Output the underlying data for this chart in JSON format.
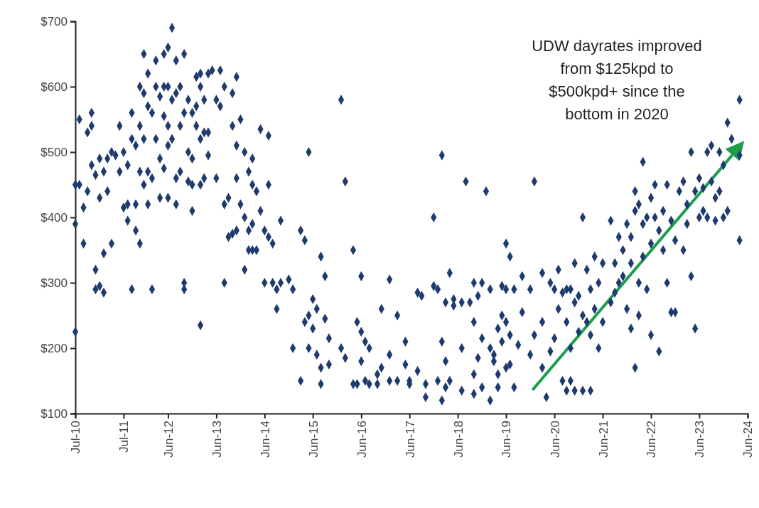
{
  "chart_data": {
    "type": "scatter",
    "marker": "diamond",
    "grid": false,
    "annotations": [
      "UDW dayrates improved\nfrom $125kpd to\n$500kpd+ since the\nbottom in 2020"
    ],
    "xlim": [
      "2010-07",
      "2024-06"
    ],
    "xticks": [
      {
        "value": "2010-07",
        "label": "Jul-10"
      },
      {
        "value": "2011-07",
        "label": "Jul-11"
      },
      {
        "value": "2012-06",
        "label": "Jun-12"
      },
      {
        "value": "2013-06",
        "label": "Jun-13"
      },
      {
        "value": "2014-06",
        "label": "Jun-14"
      },
      {
        "value": "2015-06",
        "label": "Jun-15"
      },
      {
        "value": "2016-06",
        "label": "Jun-16"
      },
      {
        "value": "2017-06",
        "label": "Jun-17"
      },
      {
        "value": "2018-06",
        "label": "Jun-18"
      },
      {
        "value": "2019-06",
        "label": "Jun-19"
      },
      {
        "value": "2020-06",
        "label": "Jun-20"
      },
      {
        "value": "2021-06",
        "label": "Jun-21"
      },
      {
        "value": "2022-06",
        "label": "Jun-22"
      },
      {
        "value": "2023-06",
        "label": "Jun-23"
      },
      {
        "value": "2024-06",
        "label": "Jun-24"
      }
    ],
    "ylim": [
      100,
      700
    ],
    "yticks": [
      {
        "value": 100,
        "label": "$100"
      },
      {
        "value": 200,
        "label": "$200"
      },
      {
        "value": 300,
        "label": "$300"
      },
      {
        "value": 400,
        "label": "$400"
      },
      {
        "value": 500,
        "label": "$500"
      },
      {
        "value": 600,
        "label": "$600"
      },
      {
        "value": 700,
        "label": "$700"
      }
    ],
    "series": [
      {
        "color": "#1f3a6e",
        "x": [
          "2010-07",
          "2010-07",
          "2010-07",
          "2010-08",
          "2010-08",
          "2010-09",
          "2010-09",
          "2010-10",
          "2010-10",
          "2010-11",
          "2010-11",
          "2010-11",
          "2010-12",
          "2010-12",
          "2010-12",
          "2011-01",
          "2011-01",
          "2011-01",
          "2011-02",
          "2011-02",
          "2011-02",
          "2011-03",
          "2011-03",
          "2011-04",
          "2011-04",
          "2011-05",
          "2011-06",
          "2011-06",
          "2011-07",
          "2011-07",
          "2011-08",
          "2011-08",
          "2011-08",
          "2011-09",
          "2011-09",
          "2011-09",
          "2011-10",
          "2011-10",
          "2011-10",
          "2011-11",
          "2011-11",
          "2011-11",
          "2011-11",
          "2011-12",
          "2011-12",
          "2011-12",
          "2011-12",
          "2012-01",
          "2012-01",
          "2012-01",
          "2012-01",
          "2012-02",
          "2012-02",
          "2012-02",
          "2012-03",
          "2012-03",
          "2012-03",
          "2012-04",
          "2012-04",
          "2012-04",
          "2012-05",
          "2012-05",
          "2012-05",
          "2012-05",
          "2012-06",
          "2012-06",
          "2012-06",
          "2012-06",
          "2012-06",
          "2012-07",
          "2012-07",
          "2012-07",
          "2012-08",
          "2012-08",
          "2012-08",
          "2012-08",
          "2012-09",
          "2012-09",
          "2012-09",
          "2012-10",
          "2012-10",
          "2012-10",
          "2012-10",
          "2012-11",
          "2012-11",
          "2012-11",
          "2012-12",
          "2012-12",
          "2012-12",
          "2012-12",
          "2013-01",
          "2013-01",
          "2013-01",
          "2013-02",
          "2013-02",
          "2013-02",
          "2013-02",
          "2013-02",
          "2013-03",
          "2013-03",
          "2013-03",
          "2013-04",
          "2013-04",
          "2013-04",
          "2013-05",
          "2013-06",
          "2013-06",
          "2013-07",
          "2013-07",
          "2013-08",
          "2013-08",
          "2013-08",
          "2013-09",
          "2013-09",
          "2013-10",
          "2013-10",
          "2013-10",
          "2013-11",
          "2013-11",
          "2013-11",
          "2013-11",
          "2013-12",
          "2013-12",
          "2014-01",
          "2014-01",
          "2014-01",
          "2014-02",
          "2014-02",
          "2014-02",
          "2014-03",
          "2014-03",
          "2014-03",
          "2014-03",
          "2014-04",
          "2014-04",
          "2014-05",
          "2014-05",
          "2014-06",
          "2014-06",
          "2014-07",
          "2014-07",
          "2014-07",
          "2014-08",
          "2014-08",
          "2014-09",
          "2014-09",
          "2014-10",
          "2014-10",
          "2014-12",
          "2015-01",
          "2015-01",
          "2015-03",
          "2015-03",
          "2015-04",
          "2015-04",
          "2015-05",
          "2015-05",
          "2015-05",
          "2015-06",
          "2015-06",
          "2015-07",
          "2015-07",
          "2015-08",
          "2015-08",
          "2015-08",
          "2015-09",
          "2015-09",
          "2015-10",
          "2015-10",
          "2016-01",
          "2016-01",
          "2016-02",
          "2016-02",
          "2016-04",
          "2016-04",
          "2016-05",
          "2016-05",
          "2016-06",
          "2016-06",
          "2016-06",
          "2016-07",
          "2016-07",
          "2016-08",
          "2016-08",
          "2016-10",
          "2016-10",
          "2016-11",
          "2016-11",
          "2017-01",
          "2017-01",
          "2017-01",
          "2017-03",
          "2017-03",
          "2017-05",
          "2017-05",
          "2017-06",
          "2017-06",
          "2017-08",
          "2017-08",
          "2017-09",
          "2017-10",
          "2017-10",
          "2017-12",
          "2017-12",
          "2018-01",
          "2018-01",
          "2018-02",
          "2018-02",
          "2018-02",
          "2018-03",
          "2018-03",
          "2018-03",
          "2018-04",
          "2018-04",
          "2018-05",
          "2018-05",
          "2018-07",
          "2018-07",
          "2018-07",
          "2018-08",
          "2018-09",
          "2018-10",
          "2018-10",
          "2018-10",
          "2018-10",
          "2018-11",
          "2018-11",
          "2018-12",
          "2018-12",
          "2018-12",
          "2019-01",
          "2019-02",
          "2019-02",
          "2019-02",
          "2019-03",
          "2019-03",
          "2019-04",
          "2019-04",
          "2019-04",
          "2019-05",
          "2019-05",
          "2019-05",
          "2019-06",
          "2019-06",
          "2019-06",
          "2019-06",
          "2019-07",
          "2019-07",
          "2019-07",
          "2019-08",
          "2019-08",
          "2019-09",
          "2019-10",
          "2019-10",
          "2019-12",
          "2019-12",
          "2020-01",
          "2020-01",
          "2020-03",
          "2020-03",
          "2020-03",
          "2020-04",
          "2020-05",
          "2020-05",
          "2020-06",
          "2020-06",
          "2020-07",
          "2020-07",
          "2020-08",
          "2020-08",
          "2020-09",
          "2020-09",
          "2020-09",
          "2020-10",
          "2020-10",
          "2020-10",
          "2020-11",
          "2020-11",
          "2020-11",
          "2020-12",
          "2020-12",
          "2021-01",
          "2021-01",
          "2021-01",
          "2021-02",
          "2021-02",
          "2021-03",
          "2021-03",
          "2021-03",
          "2021-04",
          "2021-04",
          "2021-05",
          "2021-05",
          "2021-06",
          "2021-06",
          "2021-08",
          "2021-08",
          "2021-09",
          "2021-09",
          "2021-10",
          "2021-10",
          "2021-11",
          "2021-11",
          "2021-12",
          "2021-12",
          "2022-01",
          "2022-01",
          "2022-01",
          "2022-02",
          "2022-02",
          "2022-02",
          "2022-03",
          "2022-03",
          "2022-03",
          "2022-04",
          "2022-04",
          "2022-04",
          "2022-05",
          "2022-05",
          "2022-06",
          "2022-06",
          "2022-06",
          "2022-07",
          "2022-07",
          "2022-08",
          "2022-08",
          "2022-09",
          "2022-09",
          "2022-10",
          "2022-10",
          "2022-11",
          "2022-11",
          "2022-12",
          "2022-12",
          "2023-01",
          "2023-02",
          "2023-02",
          "2023-03",
          "2023-03",
          "2023-04",
          "2023-04",
          "2023-05",
          "2023-05",
          "2023-06",
          "2023-06",
          "2023-07",
          "2023-07",
          "2023-08",
          "2023-08",
          "2023-09",
          "2023-09",
          "2023-10",
          "2023-10",
          "2023-11",
          "2023-11",
          "2023-12",
          "2023-12",
          "2024-01",
          "2024-01",
          "2024-02",
          "2024-04",
          "2024-04",
          "2024-04"
        ],
        "values": [
          225,
          390,
          450,
          450,
          550,
          415,
          360,
          530,
          440,
          560,
          540,
          480,
          320,
          290,
          465,
          490,
          430,
          295,
          470,
          285,
          345,
          440,
          490,
          360,
          500,
          495,
          470,
          540,
          500,
          415,
          480,
          420,
          395,
          520,
          560,
          290,
          510,
          380,
          420,
          600,
          540,
          470,
          360,
          650,
          590,
          520,
          450,
          620,
          570,
          470,
          420,
          560,
          460,
          290,
          600,
          520,
          640,
          585,
          490,
          430,
          650,
          600,
          555,
          475,
          660,
          600,
          540,
          510,
          430,
          690,
          580,
          520,
          640,
          590,
          460,
          420,
          600,
          540,
          470,
          650,
          560,
          290,
          300,
          580,
          500,
          455,
          560,
          450,
          410,
          490,
          615,
          570,
          540,
          600,
          520,
          620,
          450,
          235,
          580,
          530,
          460,
          620,
          530,
          495,
          625,
          580,
          460,
          625,
          570,
          600,
          300,
          420,
          430,
          370,
          590,
          540,
          375,
          615,
          510,
          460,
          380,
          550,
          420,
          500,
          400,
          320,
          470,
          380,
          350,
          490,
          450,
          390,
          350,
          440,
          350,
          535,
          410,
          380,
          300,
          525,
          450,
          370,
          300,
          360,
          290,
          260,
          395,
          300,
          305,
          290,
          200,
          150,
          380,
          365,
          240,
          500,
          250,
          200,
          275,
          230,
          260,
          190,
          340,
          170,
          145,
          310,
          245,
          215,
          175,
          580,
          200,
          455,
          185,
          350,
          145,
          240,
          145,
          310,
          225,
          180,
          210,
          150,
          200,
          145,
          160,
          145,
          260,
          170,
          305,
          190,
          150,
          250,
          150,
          210,
          175,
          150,
          145,
          285,
          165,
          280,
          145,
          125,
          400,
          295,
          290,
          150,
          495,
          120,
          210,
          270,
          180,
          140,
          315,
          150,
          275,
          265,
          270,
          200,
          135,
          455,
          270,
          300,
          240,
          160,
          130,
          280,
          185,
          300,
          215,
          140,
          440,
          290,
          200,
          120,
          190,
          180,
          230,
          160,
          140,
          295,
          250,
          210,
          360,
          290,
          240,
          170,
          340,
          220,
          175,
          290,
          140,
          205,
          310,
          255,
          290,
          190,
          455,
          220,
          315,
          240,
          170,
          125,
          300,
          195,
          290,
          215,
          320,
          260,
          285,
          150,
          290,
          240,
          135,
          290,
          200,
          150,
          330,
          270,
          135,
          280,
          225,
          400,
          250,
          135,
          320,
          240,
          290,
          220,
          135,
          340,
          260,
          300,
          200,
          240,
          330,
          395,
          270,
          330,
          285,
          300,
          370,
          350,
          310,
          390,
          260,
          370,
          330,
          230,
          440,
          410,
          170,
          420,
          300,
          250,
          485,
          390,
          340,
          400,
          290,
          430,
          360,
          220,
          450,
          400,
          380,
          195,
          410,
          350,
          450,
          300,
          395,
          255,
          365,
          255,
          440,
          455,
          350,
          420,
          390,
          500,
          310,
          440,
          230,
          460,
          400,
          445,
          410,
          500,
          400,
          455,
          510,
          430,
          395,
          500,
          440,
          480,
          400,
          545,
          410,
          520,
          580,
          495,
          365
        ]
      }
    ]
  }
}
